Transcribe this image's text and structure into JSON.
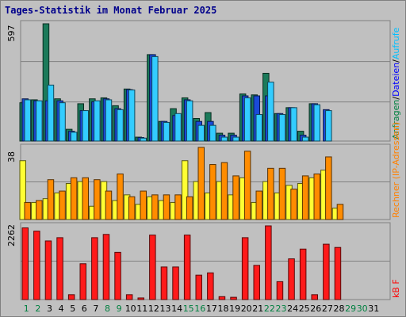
{
  "chart_data": {
    "type": "bar",
    "title": "Tages-Statistik im Monat Februar 2025",
    "days": [
      "1",
      "2",
      "3",
      "4",
      "5",
      "6",
      "7",
      "8",
      "9",
      "10",
      "11",
      "12",
      "13",
      "14",
      "15",
      "16",
      "17",
      "18",
      "19",
      "20",
      "21",
      "22",
      "23",
      "24",
      "25",
      "26",
      "27",
      "28",
      "29",
      "30",
      "31"
    ],
    "weekend_days": [
      "1",
      "2",
      "8",
      "9",
      "15",
      "16",
      "22",
      "23",
      "29",
      "30"
    ],
    "panels": [
      {
        "id": "requests",
        "ymax_label": "597",
        "ylim": [
          0,
          597
        ],
        "legend": [
          {
            "text": "Anfragen",
            "color": "#008040"
          },
          {
            "text": "/",
            "color": "#000000"
          },
          {
            "text": "Dateien",
            "color": "#0000ff"
          },
          {
            "text": "/",
            "color": "#000000"
          },
          {
            "text": "Aufrufe",
            "color": "#00bfff"
          }
        ],
        "series": [
          {
            "name": "Anfragen",
            "color": "#1b7a5a",
            "values": [
              195,
              210,
              597,
              215,
              60,
              190,
              215,
              220,
              180,
              265,
              20,
              440,
              100,
              165,
              220,
              115,
              145,
              40,
              40,
              240,
              235,
              345,
              140,
              170,
              50,
              190,
              null,
              null,
              null,
              null,
              null
            ]
          },
          {
            "name": "Dateien",
            "color": "#1a4ad8",
            "values": [
              215,
              205,
              205,
              205,
              50,
              155,
              200,
              215,
              165,
              262,
              18,
              440,
              100,
              130,
              210,
              100,
              100,
              30,
              30,
              230,
              230,
              230,
              140,
              170,
              30,
              190,
              160,
              null,
              null,
              null,
              null
            ]
          },
          {
            "name": "Aufrufe",
            "color": "#33ccff",
            "values": [
              210,
              205,
              285,
              195,
              45,
              155,
              205,
              210,
              160,
              260,
              15,
              430,
              95,
              140,
              205,
              80,
              80,
              20,
              20,
              220,
              135,
              300,
              135,
              170,
              20,
              185,
              155,
              null,
              null,
              null,
              null
            ]
          }
        ]
      },
      {
        "id": "hosts",
        "ymax_label": "38",
        "ylim": [
          0,
          38
        ],
        "legend": [
          {
            "text": "Rechner (IP-Adressen)",
            "color": "#ff8000"
          }
        ],
        "series": [
          {
            "name": "Rechner (IP-Adressen)",
            "color": "#ffff33",
            "values": [
              31,
              9,
              11,
              14,
              19,
              20,
              7,
              20,
              10,
              13,
              8,
              12,
              10,
              9,
              31,
              20,
              14,
              20,
              13,
              22,
              9,
              20,
              14,
              18,
              19,
              22,
              26,
              6,
              null,
              null,
              null
            ]
          },
          {
            "name": "Rechner (IP-Adressen)",
            "color": "#ff8c00",
            "values": [
              9,
              10,
              21,
              15,
              22,
              22,
              21,
              15,
              24,
              12,
              15,
              13,
              13,
              13,
              12,
              38,
              29,
              30,
              23,
              36,
              15,
              27,
              27,
              16,
              23,
              24,
              33,
              8,
              null,
              null,
              null
            ]
          }
        ]
      },
      {
        "id": "kb",
        "ymax_label": "2262",
        "ylim": [
          0,
          2262
        ],
        "legend": [
          {
            "text": "kB F",
            "color": "#ff0000"
          }
        ],
        "series": [
          {
            "name": "kB F",
            "color": "#ff1a1a",
            "values": [
              2200,
              2100,
              1800,
              1900,
              150,
              1100,
              1900,
              2000,
              1450,
              150,
              50,
              1980,
              1000,
              1000,
              1980,
              750,
              820,
              90,
              70,
              1900,
              1050,
              2262,
              550,
              1250,
              1550,
              150,
              1700,
              1600,
              null,
              null,
              null
            ]
          }
        ]
      }
    ]
  }
}
